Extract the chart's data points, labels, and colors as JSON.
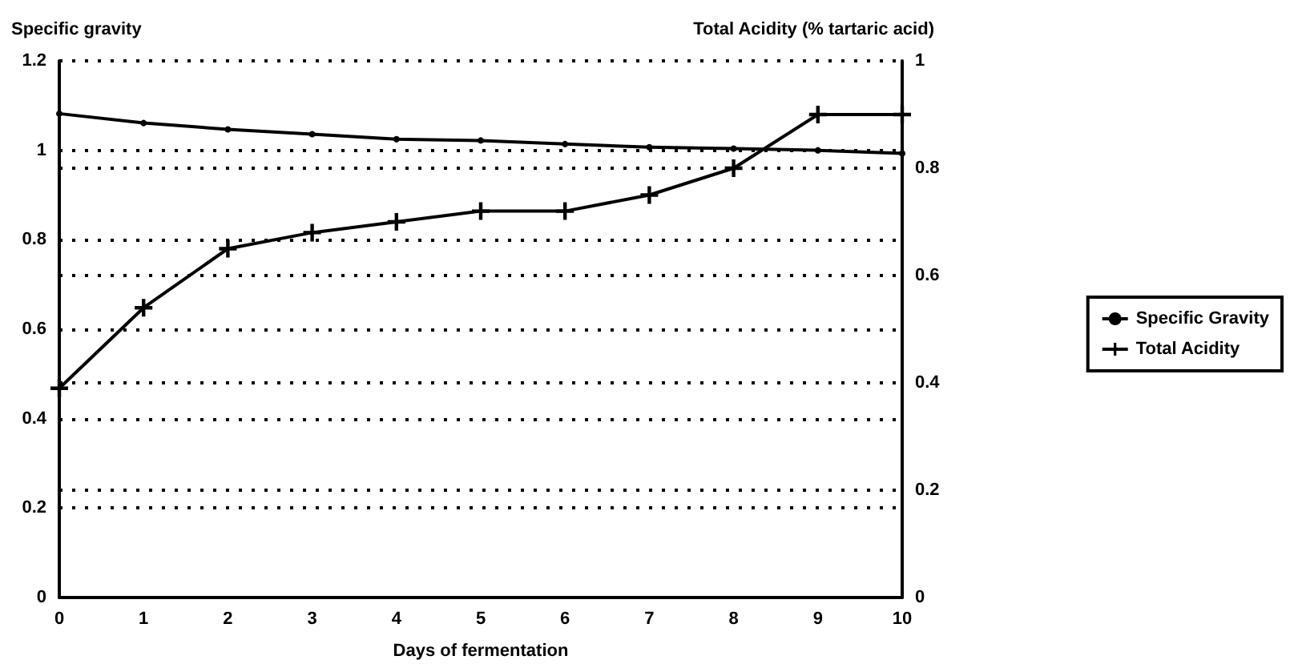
{
  "chart_data": {
    "type": "line",
    "xlabel": "Days of fermentation",
    "ylabel": "Specific gravity",
    "y2label": "Total Acidity (% tartaric acid)",
    "x": [
      0,
      1,
      2,
      3,
      4,
      5,
      6,
      7,
      8,
      9,
      10
    ],
    "series": [
      {
        "name": "Specific Gravity",
        "color": "#000000",
        "marker": "circle",
        "values": [
          1.082,
          1.061,
          1.047,
          1.036,
          1.025,
          1.022,
          1.014,
          1.007,
          1.004,
          1.0,
          0.993
        ]
      },
      {
        "name": "Total Acidity",
        "color": "#000000",
        "marker": "cross",
        "axis": "y2",
        "values": [
          0.39,
          0.54,
          0.65,
          0.68,
          0.7,
          0.72,
          0.72,
          0.75,
          0.8,
          0.9,
          0.9
        ]
      }
    ],
    "xlim": [
      0,
      10
    ],
    "xticks": [
      0,
      1,
      2,
      3,
      4,
      5,
      6,
      7,
      8,
      9,
      10
    ],
    "ylim": [
      0,
      1.2
    ],
    "yticks": [
      0,
      0.2,
      0.4,
      0.6,
      0.8,
      1,
      1.2
    ],
    "y2lim": [
      0,
      1
    ],
    "y2ticks": [
      0,
      0.2,
      0.4,
      0.6,
      0.8,
      1
    ],
    "grid": "y",
    "legend": "right",
    "line_style": "solid"
  }
}
